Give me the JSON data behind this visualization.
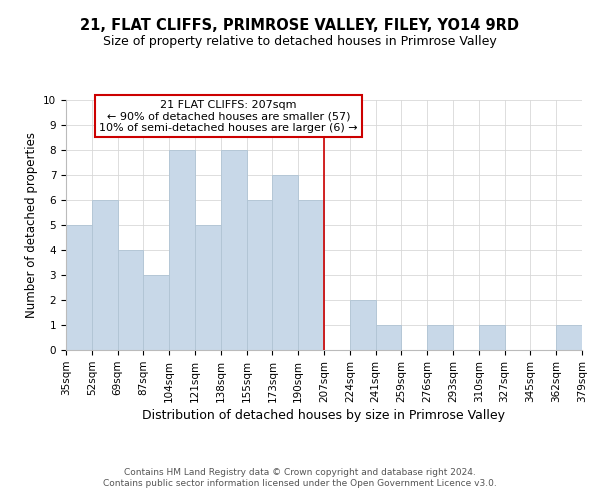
{
  "title": "21, FLAT CLIFFS, PRIMROSE VALLEY, FILEY, YO14 9RD",
  "subtitle": "Size of property relative to detached houses in Primrose Valley",
  "xlabel": "Distribution of detached houses by size in Primrose Valley",
  "ylabel": "Number of detached properties",
  "bar_color": "#c8d8e8",
  "bar_edge_color": "#b0c4d4",
  "bin_labels": [
    "35sqm",
    "52sqm",
    "69sqm",
    "87sqm",
    "104sqm",
    "121sqm",
    "138sqm",
    "155sqm",
    "173sqm",
    "190sqm",
    "207sqm",
    "224sqm",
    "241sqm",
    "259sqm",
    "276sqm",
    "293sqm",
    "310sqm",
    "327sqm",
    "345sqm",
    "362sqm",
    "379sqm"
  ],
  "bar_heights": [
    5,
    6,
    4,
    3,
    8,
    5,
    8,
    6,
    7,
    6,
    0,
    2,
    1,
    0,
    1,
    0,
    1,
    0,
    0,
    1
  ],
  "ylim": [
    0,
    10
  ],
  "red_line_x": 10,
  "annotation_title": "21 FLAT CLIFFS: 207sqm",
  "annotation_line1": "← 90% of detached houses are smaller (57)",
  "annotation_line2": "10% of semi-detached houses are larger (6) →",
  "annotation_box_color": "#ffffff",
  "annotation_box_edge_color": "#cc0000",
  "red_line_color": "#cc0000",
  "footer1": "Contains HM Land Registry data © Crown copyright and database right 2024.",
  "footer2": "Contains public sector information licensed under the Open Government Licence v3.0.",
  "grid_color": "#d8d8d8",
  "background_color": "#ffffff",
  "title_fontsize": 10.5,
  "subtitle_fontsize": 9,
  "xlabel_fontsize": 9,
  "ylabel_fontsize": 8.5,
  "tick_fontsize": 7.5,
  "footer_fontsize": 6.5,
  "ann_fontsize": 8
}
